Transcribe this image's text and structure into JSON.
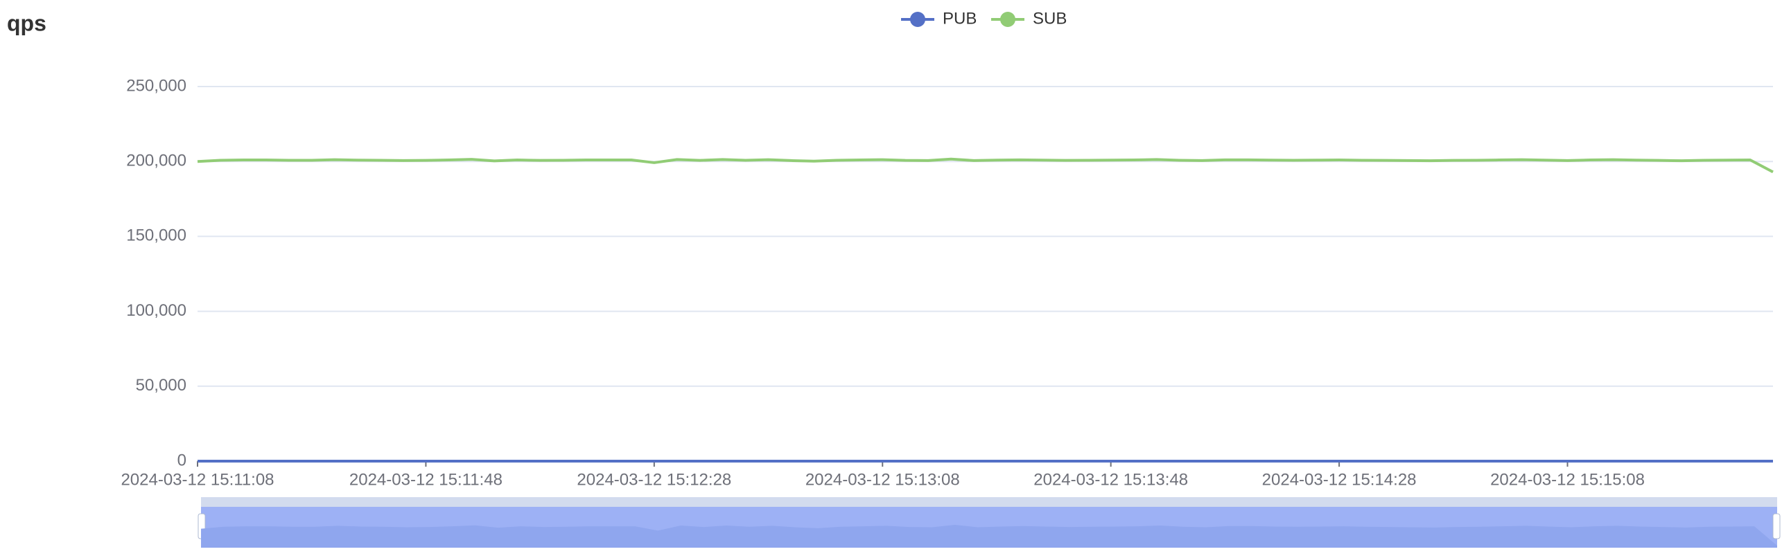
{
  "chart_data": {
    "type": "line",
    "title": "qps",
    "x": [
      "2024-03-12 15:11:08",
      "2024-03-12 15:11:12",
      "2024-03-12 15:11:16",
      "2024-03-12 15:11:20",
      "2024-03-12 15:11:24",
      "2024-03-12 15:11:28",
      "2024-03-12 15:11:32",
      "2024-03-12 15:11:36",
      "2024-03-12 15:11:40",
      "2024-03-12 15:11:44",
      "2024-03-12 15:11:48",
      "2024-03-12 15:11:52",
      "2024-03-12 15:11:56",
      "2024-03-12 15:12:00",
      "2024-03-12 15:12:04",
      "2024-03-12 15:12:08",
      "2024-03-12 15:12:12",
      "2024-03-12 15:12:16",
      "2024-03-12 15:12:20",
      "2024-03-12 15:12:24",
      "2024-03-12 15:12:28",
      "2024-03-12 15:12:32",
      "2024-03-12 15:12:36",
      "2024-03-12 15:12:40",
      "2024-03-12 15:12:44",
      "2024-03-12 15:12:48",
      "2024-03-12 15:12:52",
      "2024-03-12 15:12:56",
      "2024-03-12 15:13:00",
      "2024-03-12 15:13:04",
      "2024-03-12 15:13:08",
      "2024-03-12 15:13:12",
      "2024-03-12 15:13:16",
      "2024-03-12 15:13:20",
      "2024-03-12 15:13:24",
      "2024-03-12 15:13:28",
      "2024-03-12 15:13:32",
      "2024-03-12 15:13:36",
      "2024-03-12 15:13:40",
      "2024-03-12 15:13:44",
      "2024-03-12 15:13:48",
      "2024-03-12 15:13:52",
      "2024-03-12 15:13:56",
      "2024-03-12 15:14:00",
      "2024-03-12 15:14:04",
      "2024-03-12 15:14:08",
      "2024-03-12 15:14:12",
      "2024-03-12 15:14:16",
      "2024-03-12 15:14:20",
      "2024-03-12 15:14:24",
      "2024-03-12 15:14:28",
      "2024-03-12 15:14:32",
      "2024-03-12 15:14:36",
      "2024-03-12 15:14:40",
      "2024-03-12 15:14:44",
      "2024-03-12 15:14:48",
      "2024-03-12 15:14:52",
      "2024-03-12 15:14:56",
      "2024-03-12 15:15:00",
      "2024-03-12 15:15:04",
      "2024-03-12 15:15:08",
      "2024-03-12 15:15:12",
      "2024-03-12 15:15:16",
      "2024-03-12 15:15:20",
      "2024-03-12 15:15:24",
      "2024-03-12 15:15:28",
      "2024-03-12 15:15:32",
      "2024-03-12 15:15:36",
      "2024-03-12 15:15:40",
      "2024-03-12 15:15:44"
    ],
    "series": [
      {
        "name": "PUB",
        "color": "#5470c6",
        "values": [
          0,
          0,
          0,
          0,
          0,
          0,
          0,
          0,
          0,
          0,
          0,
          0,
          0,
          0,
          0,
          0,
          0,
          0,
          0,
          0,
          0,
          0,
          0,
          0,
          0,
          0,
          0,
          0,
          0,
          0,
          0,
          0,
          0,
          0,
          0,
          0,
          0,
          0,
          0,
          0,
          0,
          0,
          0,
          0,
          0,
          0,
          0,
          0,
          0,
          0,
          0,
          0,
          0,
          0,
          0,
          0,
          0,
          0,
          0,
          0,
          0,
          0,
          0,
          0,
          0,
          0,
          0,
          0,
          0,
          0
        ]
      },
      {
        "name": "SUB",
        "color": "#91cc75",
        "values": [
          200000,
          200800,
          201000,
          201000,
          200800,
          200800,
          201200,
          200900,
          200800,
          200600,
          200700,
          201000,
          201400,
          200400,
          201000,
          200700,
          200800,
          201000,
          201000,
          201000,
          199200,
          201300,
          200700,
          201300,
          200800,
          201200,
          200600,
          200200,
          200800,
          201000,
          201200,
          200700,
          200600,
          201600,
          200600,
          200900,
          201100,
          200900,
          200700,
          200800,
          200900,
          201000,
          201300,
          200800,
          200600,
          201100,
          201100,
          200900,
          200800,
          200900,
          201000,
          200800,
          200700,
          200600,
          200500,
          200700,
          200800,
          201000,
          201200,
          200900,
          200600,
          201000,
          201200,
          200900,
          200700,
          200500,
          200800,
          200900,
          201000,
          193000
        ]
      }
    ],
    "xlim": [
      "2024-03-12 15:11:08",
      "2024-03-12 15:15:44"
    ],
    "xticks": [
      "2024-03-12 15:11:08",
      "2024-03-12 15:11:48",
      "2024-03-12 15:12:28",
      "2024-03-12 15:13:08",
      "2024-03-12 15:13:48",
      "2024-03-12 15:14:28",
      "2024-03-12 15:15:08"
    ],
    "ylim": [
      0,
      250000
    ],
    "yticks": [
      0,
      {
        "value": 50000,
        "label": "50,000"
      },
      {
        "value": 100000,
        "label": "100,000"
      },
      {
        "value": 150000,
        "label": "150,000"
      },
      {
        "value": 200000,
        "label": "200,000"
      },
      {
        "value": 250000,
        "label": "250,000"
      }
    ],
    "grid": true,
    "legend": "top"
  }
}
